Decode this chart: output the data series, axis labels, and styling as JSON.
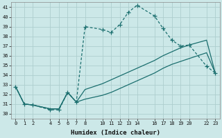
{
  "xlabel": "Humidex (Indice chaleur)",
  "background_color": "#cce8e8",
  "grid_color": "#b8d8d8",
  "line_color": "#1a6e6e",
  "ylim": [
    29.5,
    41.5
  ],
  "xlim": [
    -0.5,
    23.5
  ],
  "yticks": [
    30,
    31,
    32,
    33,
    34,
    35,
    36,
    37,
    38,
    39,
    40,
    41
  ],
  "xticks": [
    0,
    1,
    2,
    4,
    5,
    6,
    7,
    8,
    10,
    11,
    12,
    13,
    14,
    16,
    17,
    18,
    19,
    20,
    22,
    23
  ],
  "line1_x": [
    0,
    1,
    2,
    4,
    5,
    6,
    7,
    8,
    10,
    11,
    12,
    13,
    14,
    16,
    17,
    18,
    19,
    20,
    22,
    23
  ],
  "line1_y": [
    32.8,
    31.0,
    30.9,
    30.4,
    30.4,
    32.2,
    31.2,
    39.0,
    38.7,
    38.4,
    39.2,
    40.5,
    41.2,
    40.1,
    38.8,
    37.6,
    37.0,
    37.1,
    34.9,
    34.2
  ],
  "line2_x": [
    0,
    1,
    2,
    4,
    5,
    6,
    7,
    8,
    10,
    11,
    12,
    13,
    14,
    16,
    17,
    18,
    19,
    20,
    22,
    23
  ],
  "line2_y": [
    32.8,
    31.0,
    30.9,
    30.5,
    30.5,
    32.2,
    31.2,
    32.5,
    33.1,
    33.5,
    33.9,
    34.3,
    34.7,
    35.5,
    36.0,
    36.4,
    36.8,
    37.1,
    37.6,
    34.2
  ],
  "line3_x": [
    0,
    1,
    2,
    4,
    5,
    6,
    7,
    8,
    10,
    11,
    12,
    13,
    14,
    16,
    17,
    18,
    19,
    20,
    22,
    23
  ],
  "line3_y": [
    32.8,
    31.0,
    30.9,
    30.5,
    30.5,
    32.2,
    31.2,
    31.5,
    31.9,
    32.2,
    32.6,
    33.0,
    33.4,
    34.2,
    34.7,
    35.1,
    35.4,
    35.7,
    36.3,
    34.2
  ]
}
